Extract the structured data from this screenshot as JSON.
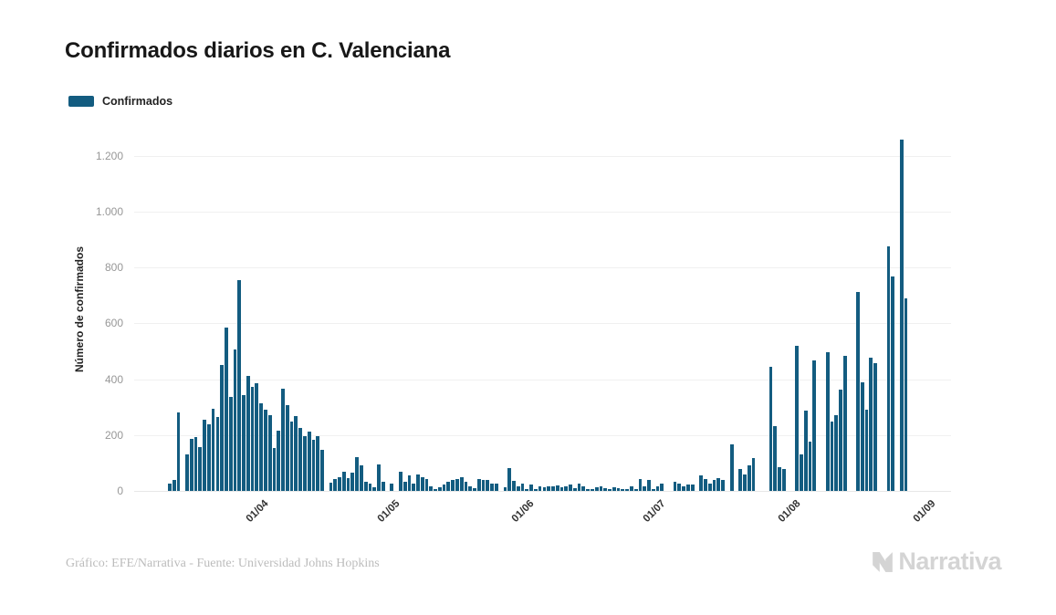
{
  "title": "Confirmados diarios en C. Valenciana",
  "legend": {
    "label": "Confirmados",
    "swatch_color": "#135c80"
  },
  "footer": {
    "credit": "Gráfico: EFE/Narrativa - Fuente: Universidad Johns Hopkins"
  },
  "logo": {
    "text": "Narrativa",
    "icon": "narrativa-n-icon",
    "color": "#d4d4d4"
  },
  "chart_data": {
    "type": "bar",
    "title": "Confirmados diarios en C. Valenciana",
    "series_name": "Confirmados",
    "xlabel": "",
    "ylabel": "Número de confirmados",
    "ylim": [
      0,
      1300
    ],
    "grid": true,
    "legend_position": "top-left",
    "bar_color": "#135c80",
    "ytick_values": [
      0,
      200,
      400,
      600,
      800,
      1000,
      1200
    ],
    "ytick_labels": [
      "0",
      "200",
      "400",
      "600",
      "800",
      "1.000",
      "1.200"
    ],
    "xtick_labels": [
      "01/04",
      "01/05",
      "01/06",
      "01/07",
      "01/08",
      "01/09"
    ],
    "xtick_indices": [
      18,
      48,
      79,
      109,
      140,
      171
    ],
    "values": [
      25,
      40,
      280,
      0,
      131,
      185,
      193,
      158,
      256,
      240,
      294,
      265,
      450,
      585,
      338,
      507,
      753,
      344,
      411,
      374,
      384,
      313,
      290,
      270,
      153,
      216,
      365,
      308,
      247,
      268,
      227,
      197,
      211,
      184,
      195,
      148,
      0,
      30,
      43,
      49,
      70,
      46,
      65,
      122,
      92,
      32,
      27,
      14,
      94,
      32,
      0,
      25,
      0,
      68,
      32,
      54,
      25,
      59,
      49,
      43,
      18,
      5,
      14,
      22,
      32,
      38,
      43,
      49,
      32,
      16,
      11,
      43,
      40,
      38,
      25,
      27,
      0,
      14,
      81,
      36,
      18,
      25,
      8,
      22,
      5,
      16,
      14,
      18,
      16,
      20,
      14,
      16,
      22,
      10,
      25,
      18,
      8,
      5,
      12,
      16,
      10,
      8,
      14,
      10,
      5,
      8,
      18,
      5,
      43,
      18,
      38,
      5,
      18,
      25,
      0,
      0,
      32,
      25,
      18,
      22,
      22,
      0,
      54,
      43,
      27,
      38,
      46,
      40,
      0,
      168,
      0,
      79,
      59,
      90,
      119,
      0,
      0,
      0,
      445,
      232,
      85,
      78,
      0,
      0,
      518,
      131,
      287,
      178,
      467,
      0,
      0,
      497,
      249,
      270,
      363,
      483,
      0,
      0,
      712,
      390,
      292,
      476,
      456,
      0,
      0,
      874,
      769,
      0,
      1258,
      690,
      0,
      0
    ]
  }
}
